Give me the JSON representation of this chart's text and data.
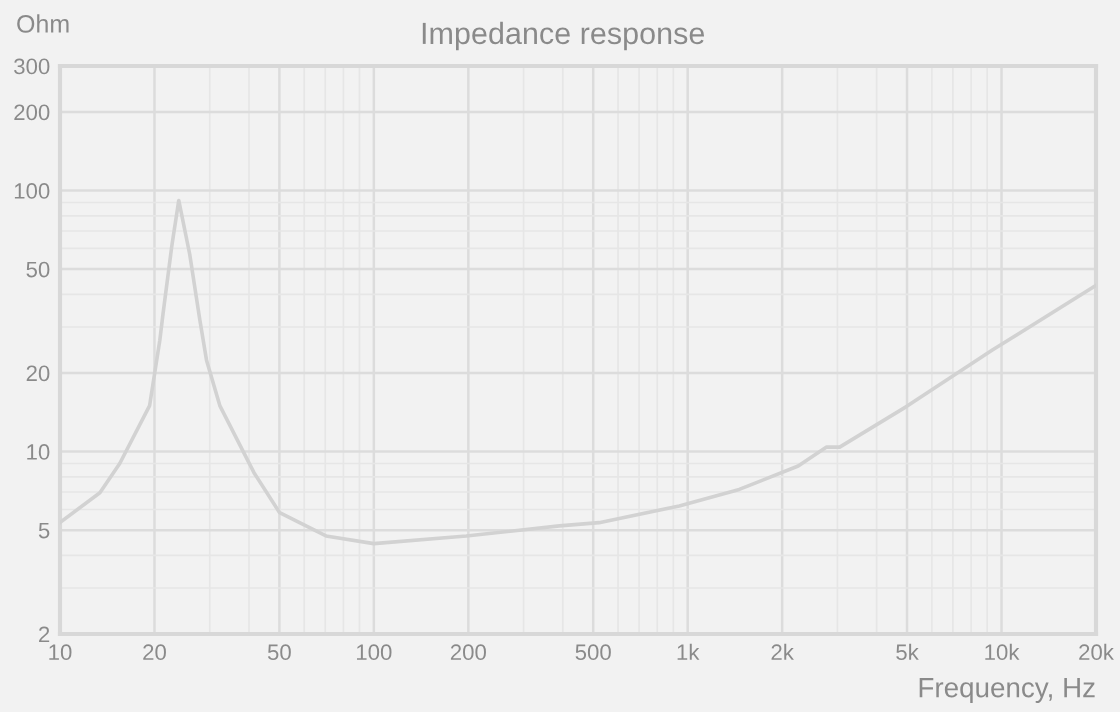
{
  "chart_data": {
    "type": "line",
    "title": "Impedance response",
    "xlabel": "Frequency, Hz",
    "ylabel": "Ohm",
    "log": "xy",
    "grid": true,
    "marker": "none",
    "line_style": "solid",
    "x": [
      10,
      13.4,
      15.5,
      19.3,
      20.8,
      21.3,
      22.7,
      23.9,
      25.9,
      27.9,
      29.3,
      32.3,
      41.5,
      50.1,
      70.4,
      100,
      197,
      390,
      522,
      940,
      1460,
      2250,
      2770,
      3050,
      4990,
      9350,
      20000
    ],
    "series": [
      {
        "color": "#d2d2d2",
        "values": [
          5.35,
          6.95,
          9.0,
          15,
          26.7,
          33.8,
          61,
          91.6,
          57,
          31.9,
          22.4,
          15,
          8.3,
          5.83,
          4.75,
          4.44,
          4.75,
          5.19,
          5.34,
          6.19,
          7.16,
          8.8,
          10.4,
          10.4,
          14.9,
          24.5,
          43.3
        ]
      }
    ],
    "xlim": [
      10,
      20000
    ],
    "ylim": [
      2,
      300
    ],
    "xticks": [
      10,
      20,
      50,
      100,
      200,
      500,
      {
        "value": 1000,
        "label": "1k"
      },
      {
        "value": 2000,
        "label": "2k"
      },
      {
        "value": 5000,
        "label": "5k"
      },
      {
        "value": 10000,
        "label": "10k"
      },
      {
        "value": 20000,
        "label": "20k"
      }
    ],
    "yticks": [
      2,
      5,
      10,
      20,
      50,
      100,
      200,
      300
    ]
  }
}
